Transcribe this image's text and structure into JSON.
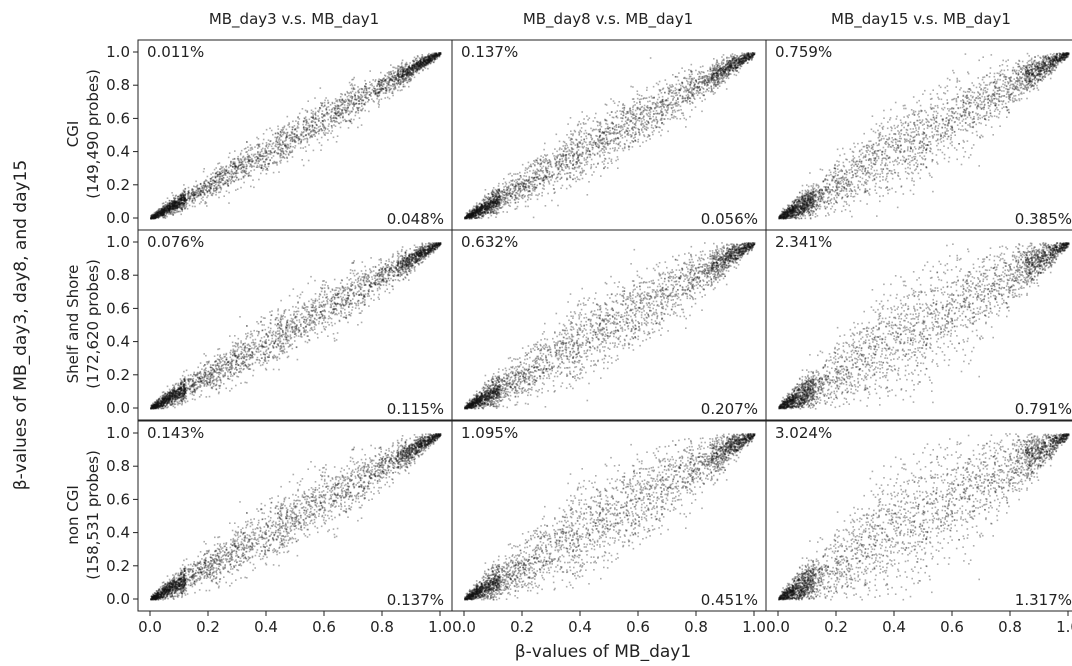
{
  "chart_data": {
    "type": "scatter",
    "xlabel": "β-values of MB_day1",
    "ylabel": "β-values of MB_day3, day8, and day15",
    "xlim": [
      0.0,
      1.0
    ],
    "ylim": [
      0.0,
      1.0
    ],
    "x_ticks": [
      "0.0",
      "0.2",
      "0.4",
      "0.6",
      "0.8",
      "1.0"
    ],
    "y_ticks": [
      "0.0",
      "0.2",
      "0.4",
      "0.6",
      "0.8",
      "1.0"
    ],
    "grid": false,
    "column_titles": [
      "MB_day3 v.s. MB_day1",
      "MB_day8 v.s. MB_day1",
      "MB_day15 v.s. MB_day1"
    ],
    "row_labels": [
      {
        "name": "CGI",
        "probes": "(149,490 probes)"
      },
      {
        "name": "Shelf and Shore",
        "probes": "(172,620 probes)"
      },
      {
        "name": "non CGI",
        "probes": "(158,531 probes)"
      }
    ],
    "panels": [
      [
        {
          "upper_pct": "0.011%",
          "lower_pct": "0.048%",
          "spread": 0.045
        },
        {
          "upper_pct": "0.137%",
          "lower_pct": "0.056%",
          "spread": 0.065
        },
        {
          "upper_pct": "0.759%",
          "lower_pct": "0.385%",
          "spread": 0.095
        }
      ],
      [
        {
          "upper_pct": "0.076%",
          "lower_pct": "0.115%",
          "spread": 0.06
        },
        {
          "upper_pct": "0.632%",
          "lower_pct": "0.207%",
          "spread": 0.09
        },
        {
          "upper_pct": "2.341%",
          "lower_pct": "0.791%",
          "spread": 0.13
        }
      ],
      [
        {
          "upper_pct": "0.143%",
          "lower_pct": "0.137%",
          "spread": 0.07
        },
        {
          "upper_pct": "1.095%",
          "lower_pct": "0.451%",
          "spread": 0.11
        },
        {
          "upper_pct": "3.024%",
          "lower_pct": "1.317%",
          "spread": 0.15
        }
      ]
    ]
  }
}
